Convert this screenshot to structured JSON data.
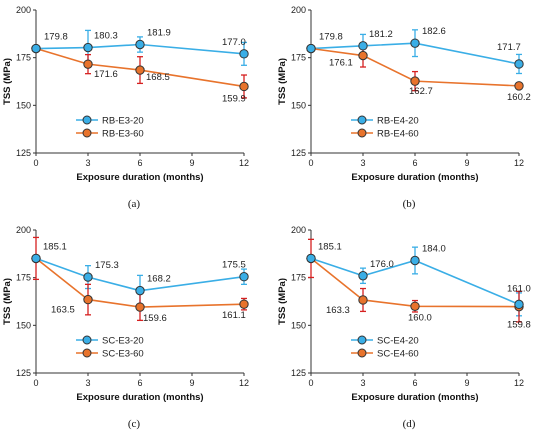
{
  "chart_data": [
    {
      "type": "line",
      "panel": "a",
      "caption": "(a)",
      "xlabel": "Exposure duration (months)",
      "ylabel": "TSS (MPa)",
      "xlim": [
        0,
        12
      ],
      "ylim": [
        125,
        200
      ],
      "xticks": [
        0,
        3,
        6,
        9,
        12
      ],
      "yticks": [
        125,
        150,
        175,
        200
      ],
      "grid": false,
      "legend": "lower-left",
      "x": [
        0,
        3,
        6,
        12
      ],
      "series": [
        {
          "name": "RB-E3-20",
          "color": "#3aaee6",
          "values": [
            179.8,
            180.3,
            181.9,
            177.0
          ],
          "errors": [
            0,
            9,
            4,
            6
          ],
          "labels": [
            "179.8",
            "180.3",
            "181.9",
            "177.0"
          ]
        },
        {
          "name": "RB-E3-60",
          "color": "#e8732c",
          "values": [
            179.8,
            171.6,
            168.5,
            159.9
          ],
          "errors": [
            0,
            5,
            7,
            6
          ],
          "labels": [
            "",
            "171.6",
            "168.5",
            "159.9"
          ]
        }
      ]
    },
    {
      "type": "line",
      "panel": "b",
      "caption": "(b)",
      "xlabel": "Exposure duration (months)",
      "ylabel": "TSS (MPa)",
      "xlim": [
        0,
        12
      ],
      "ylim": [
        125,
        200
      ],
      "xticks": [
        0,
        3,
        6,
        9,
        12
      ],
      "yticks": [
        125,
        150,
        175,
        200
      ],
      "grid": false,
      "legend": "lower-left",
      "x": [
        0,
        3,
        6,
        12
      ],
      "series": [
        {
          "name": "RB-E4-20",
          "color": "#3aaee6",
          "values": [
            179.8,
            181.2,
            182.6,
            171.7
          ],
          "errors": [
            0,
            6,
            7,
            5
          ],
          "labels": [
            "179.8",
            "181.2",
            "182.6",
            "171.7"
          ]
        },
        {
          "name": "RB-E4-60",
          "color": "#e8732c",
          "values": [
            179.8,
            176.1,
            162.7,
            160.2
          ],
          "errors": [
            0,
            6,
            5,
            1
          ],
          "labels": [
            "",
            "176.1",
            "162.7",
            "160.2"
          ]
        }
      ]
    },
    {
      "type": "line",
      "panel": "c",
      "caption": "(c)",
      "xlabel": "Exposure duration (months)",
      "ylabel": "TSS (MPa)",
      "xlim": [
        0,
        12
      ],
      "ylim": [
        125,
        200
      ],
      "xticks": [
        0,
        3,
        6,
        9,
        12
      ],
      "yticks": [
        125,
        150,
        175,
        200
      ],
      "grid": false,
      "legend": "lower-left",
      "x": [
        0,
        3,
        6,
        12
      ],
      "series": [
        {
          "name": "SC-E3-20",
          "color": "#3aaee6",
          "values": [
            185.1,
            175.3,
            168.2,
            175.5
          ],
          "errors": [
            0,
            6,
            8,
            4
          ],
          "labels": [
            "185.1",
            "175.3",
            "168.2",
            "175.5"
          ]
        },
        {
          "name": "SC-E3-60",
          "color": "#e8732c",
          "values": [
            185.1,
            163.5,
            159.6,
            161.1
          ],
          "errors": [
            11,
            8,
            7,
            3
          ],
          "labels": [
            "",
            "163.5",
            "159.6",
            "161.1"
          ]
        }
      ]
    },
    {
      "type": "line",
      "panel": "d",
      "caption": "(d)",
      "xlabel": "Exposure duration (months)",
      "ylabel": "TSS (MPa)",
      "xlim": [
        0,
        12
      ],
      "ylim": [
        125,
        200
      ],
      "xticks": [
        0,
        3,
        6,
        9,
        12
      ],
      "yticks": [
        125,
        150,
        175,
        200
      ],
      "grid": false,
      "legend": "lower-left",
      "x": [
        0,
        3,
        6,
        12
      ],
      "series": [
        {
          "name": "SC-E4-20",
          "color": "#3aaee6",
          "values": [
            185.1,
            176.0,
            184.0,
            161.0
          ],
          "errors": [
            0,
            4,
            7,
            6
          ],
          "labels": [
            "185.1",
            "176.0",
            "184.0",
            "161.0"
          ]
        },
        {
          "name": "SC-E4-60",
          "color": "#e8732c",
          "values": [
            185.1,
            163.3,
            160.0,
            159.8
          ],
          "errors": [
            10,
            6,
            3,
            8
          ],
          "labels": [
            "",
            "163.3",
            "160.0",
            "159.8"
          ]
        }
      ]
    }
  ]
}
